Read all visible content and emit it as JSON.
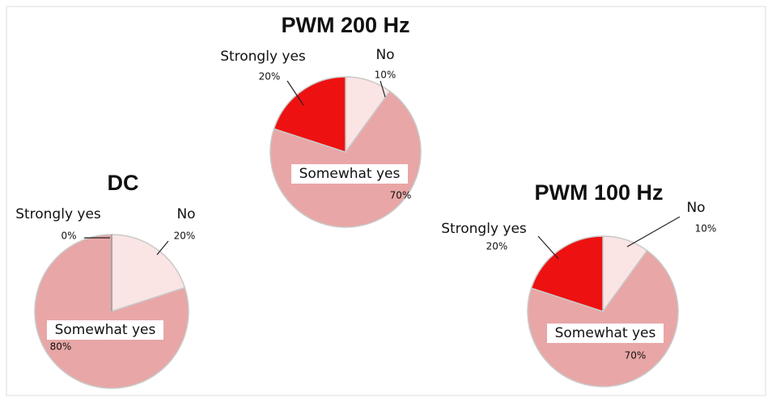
{
  "chart_data": [
    {
      "type": "pie",
      "title": "DC",
      "categories": [
        "No",
        "Somewhat yes",
        "Strongly yes"
      ],
      "values": [
        20,
        80,
        0
      ],
      "value_labels": [
        "20%",
        "80%",
        "0%"
      ],
      "colors": [
        "#fbe4e4",
        "#e9a6a6",
        "#ee1111"
      ]
    },
    {
      "type": "pie",
      "title": "PWM 200 Hz",
      "categories": [
        "No",
        "Somewhat yes",
        "Strongly yes"
      ],
      "values": [
        10,
        70,
        20
      ],
      "value_labels": [
        "10%",
        "70%",
        "20%"
      ],
      "colors": [
        "#fbe4e4",
        "#e9a6a6",
        "#ee1111"
      ]
    },
    {
      "type": "pie",
      "title": "PWM 100 Hz",
      "categories": [
        "No",
        "Somewhat yes",
        "Strongly yes"
      ],
      "values": [
        10,
        70,
        20
      ],
      "value_labels": [
        "10%",
        "70%",
        "20%"
      ],
      "colors": [
        "#fbe4e4",
        "#e9a6a6",
        "#ee1111"
      ]
    }
  ]
}
